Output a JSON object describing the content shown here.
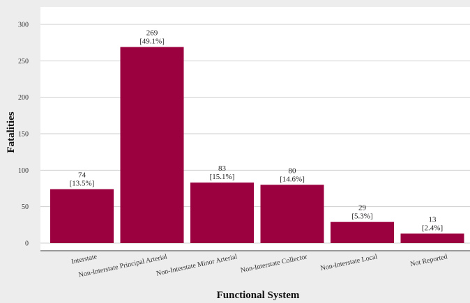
{
  "chart_data": {
    "type": "bar",
    "categories": [
      "Interstate",
      "Non-Interstate Principal Arterial",
      "Non-Interstate Minor Arterial",
      "Non-Interstate Collector",
      "Non-Interstate Local",
      "Not Reported"
    ],
    "values": [
      74,
      269,
      83,
      80,
      29,
      13
    ],
    "percent_labels": [
      "[13.5%]",
      "[49.1%]",
      "[15.1%]",
      "[14.6%]",
      "[5.3%]",
      "[2.4%]"
    ],
    "xlabel": "Functional System",
    "ylabel": "Fatalities",
    "ylim": [
      0,
      300
    ],
    "yticks": [
      0,
      50,
      100,
      150,
      200,
      250,
      300
    ],
    "grid": true,
    "legend": "none",
    "colors": {
      "bar": "#9b003f",
      "plot_background": "#ffffff",
      "page_background": "#ededed",
      "grid": "#cfcfcf"
    }
  }
}
